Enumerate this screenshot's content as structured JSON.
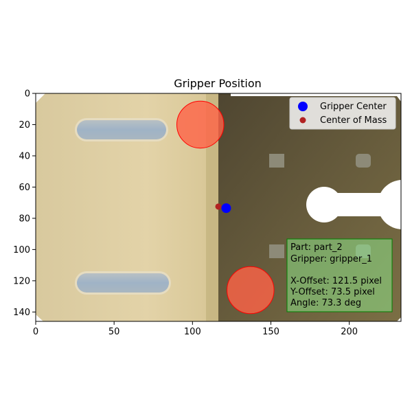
{
  "chart_data": {
    "type": "scatter",
    "title": "Gripper Position",
    "xlim": [
      0,
      233
    ],
    "ylim": [
      146,
      0
    ],
    "x_ticks": [
      0,
      50,
      100,
      150,
      200
    ],
    "y_ticks": [
      0,
      20,
      40,
      60,
      80,
      100,
      120,
      140
    ],
    "grid": false,
    "legend_position": "top-right",
    "background": "image of a metal part (left half beige, right half dark olive) with two rounded slots on the left, small square holes and a keyhole cut-out on the right edge",
    "series": [
      {
        "name": "Gripper Center",
        "color": "#0000ff",
        "points": [
          [
            121.5,
            73.5
          ]
        ]
      },
      {
        "name": "Center of Mass",
        "color": "#b22222",
        "points": [
          [
            116.5,
            72.5
          ]
        ]
      }
    ],
    "gripper_fingers": [
      {
        "x": 105,
        "y": 20,
        "radius": 15,
        "fill": "#ff6347",
        "stroke": "#ff0000"
      },
      {
        "x": 137,
        "y": 126,
        "radius": 15,
        "fill": "#ff6347",
        "stroke": "#ff0000"
      }
    ],
    "info_box": {
      "lines": [
        "Part: part_2",
        "Gripper: gripper_1",
        "",
        "X-Offset: 121.5 pixel",
        "Y-Offset: 73.5 pixel",
        "Angle: 73.3 deg"
      ],
      "background": "#90ee90",
      "border": "#008000"
    }
  }
}
